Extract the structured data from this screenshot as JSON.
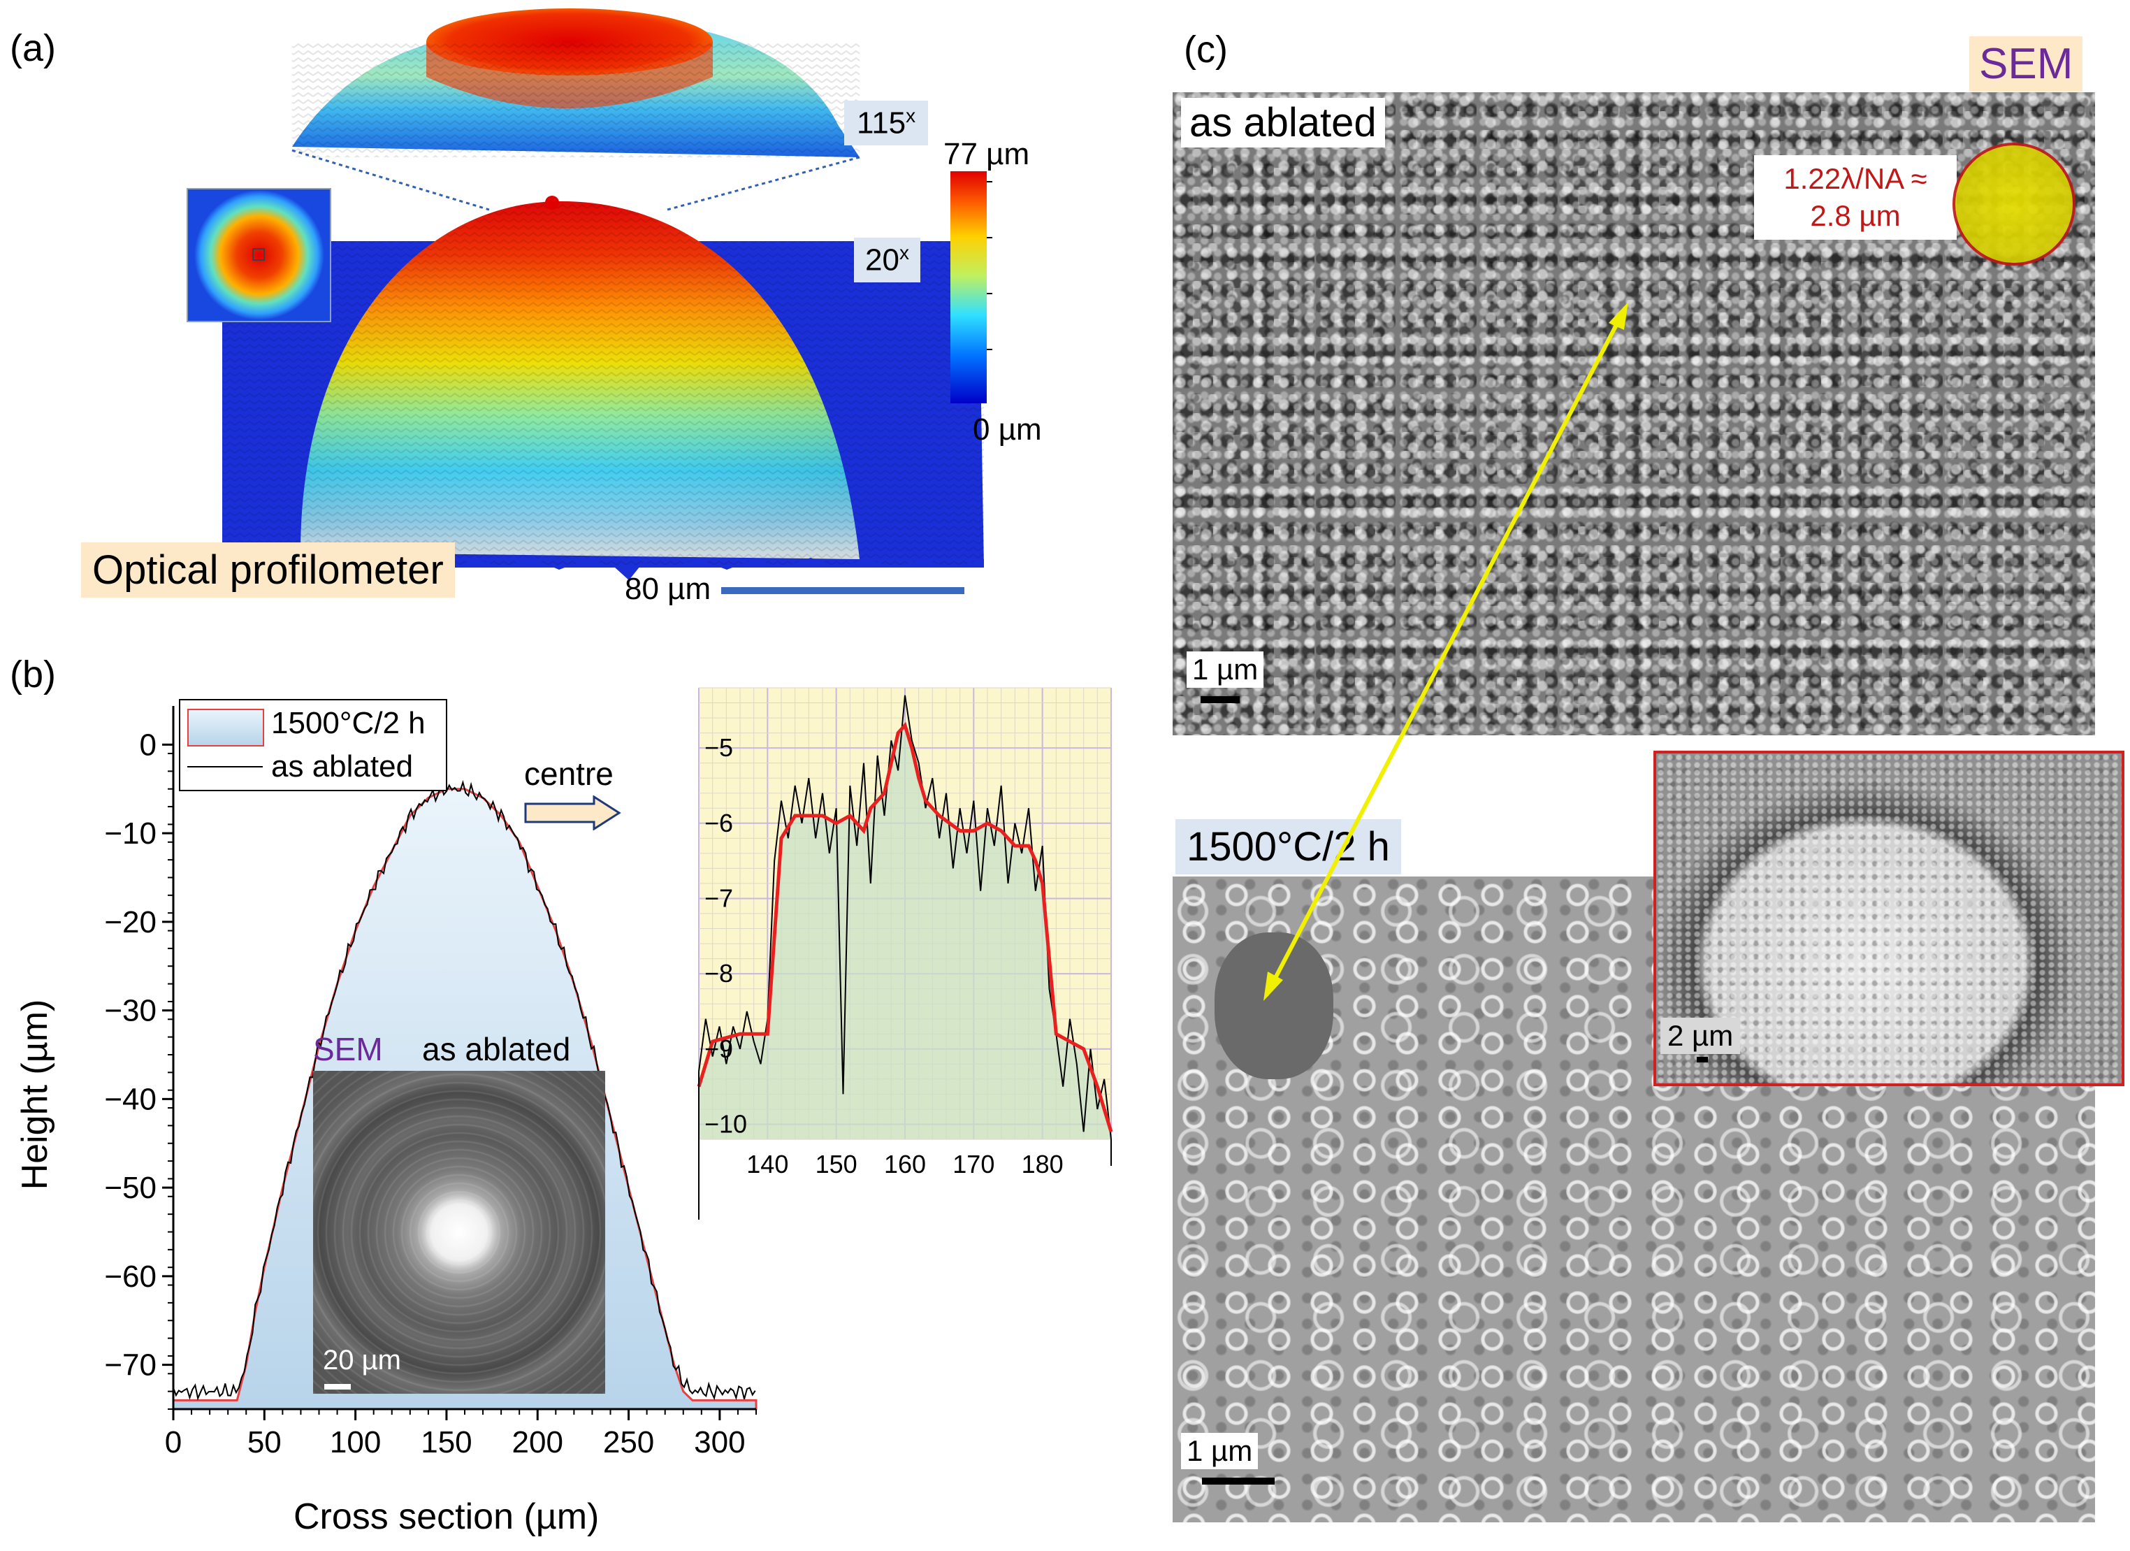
{
  "figure": {
    "panel_a": {
      "label": "(a)",
      "zoom_top": "115",
      "zoom_main": "20",
      "zoom_suffix": "x",
      "colorbar_max": "77 µm",
      "colorbar_min": "0 µm",
      "tag": "Optical profilometer",
      "scalebar": "80 µm",
      "colormap": [
        "#0000c8",
        "#00b4ff",
        "#40ffd0",
        "#e8f000",
        "#ff8000",
        "#e00000"
      ]
    },
    "panel_b": {
      "label": "(b)",
      "ylabel": "Height (µm)",
      "xlabel": "Cross section (µm)",
      "legend": [
        "1500°C/2 h",
        "as ablated"
      ],
      "arrow_label": "centre",
      "inset_sem": "SEM",
      "inset_title": "as ablated",
      "inset_scalebar": "20 µm"
    },
    "panel_c": {
      "label": "(c)",
      "sem_tag": "SEM",
      "top_tag": "as ablated",
      "annotation_line1": "1.22λ/NA ≈",
      "annotation_line2": "2.8 µm",
      "top_scalebar": "1 µm",
      "bottom_tag": "1500°C/2 h",
      "bottom_scalebar": "1 µm",
      "inset_scalebar": "2 µm"
    }
  },
  "chart_data": [
    {
      "type": "area",
      "xlim": [
        0,
        320
      ],
      "ylim": [
        -75,
        2
      ],
      "xticks": [
        0,
        50,
        100,
        150,
        200,
        250,
        300
      ],
      "yticks": [
        0,
        -10,
        -20,
        -30,
        -40,
        -50,
        -60,
        -70
      ],
      "xlabel": "Cross section (µm)",
      "ylabel": "Height (µm)",
      "legend": "top-left",
      "series": [
        {
          "name": "1500°C/2 h",
          "color": "#e84040",
          "x": [
            0,
            35,
            40,
            45,
            50,
            60,
            70,
            80,
            90,
            100,
            110,
            120,
            130,
            140,
            150,
            160,
            170,
            180,
            190,
            200,
            210,
            220,
            230,
            240,
            250,
            260,
            270,
            275,
            280,
            285,
            320
          ],
          "y": [
            -74,
            -74,
            -70,
            -64,
            -59,
            -50,
            -42,
            -34,
            -27,
            -21,
            -16,
            -12,
            -8,
            -6,
            -5,
            -5,
            -6,
            -8,
            -11,
            -16,
            -21,
            -27,
            -34,
            -42,
            -50,
            -58,
            -66,
            -70,
            -73,
            -74,
            -74
          ]
        },
        {
          "name": "as ablated",
          "color": "#000000",
          "x": [
            0,
            35,
            40,
            45,
            50,
            60,
            70,
            80,
            90,
            100,
            110,
            120,
            130,
            140,
            150,
            160,
            170,
            180,
            190,
            200,
            210,
            220,
            230,
            240,
            250,
            260,
            270,
            275,
            280,
            285,
            320
          ],
          "y": [
            -73,
            -73,
            -70,
            -64,
            -59,
            -50,
            -42,
            -34,
            -27,
            -21,
            -16,
            -12,
            -8,
            -6,
            -5,
            -5,
            -6,
            -8,
            -11,
            -16,
            -21,
            -27,
            -34,
            -42,
            -50,
            -58,
            -66,
            -70,
            -72,
            -73,
            -73
          ]
        }
      ]
    },
    {
      "type": "line",
      "xlim": [
        130,
        190
      ],
      "ylim": [
        -10.2,
        -4.2
      ],
      "xticks": [
        140,
        150,
        160,
        170,
        180
      ],
      "yticks": [
        -5,
        -6,
        -7,
        -8,
        -9,
        -10
      ],
      "series": [
        {
          "name": "1500°C/2 h",
          "color": "#e82020",
          "x": [
            130,
            132,
            136,
            140,
            141,
            142,
            144,
            148,
            150,
            152,
            154,
            155,
            157,
            158,
            159,
            160,
            161,
            162,
            163,
            165,
            168,
            170,
            172,
            174,
            176,
            178,
            179,
            180,
            181,
            182,
            184,
            186,
            188,
            190
          ],
          "y": [
            -9.5,
            -8.9,
            -8.8,
            -8.8,
            -7.5,
            -6.2,
            -5.9,
            -5.9,
            -6.0,
            -5.9,
            -6.1,
            -5.8,
            -5.6,
            -5.2,
            -4.8,
            -4.7,
            -5.0,
            -5.4,
            -5.7,
            -5.9,
            -6.1,
            -6.1,
            -6.0,
            -6.1,
            -6.3,
            -6.3,
            -6.5,
            -6.8,
            -7.8,
            -8.8,
            -8.9,
            -9.0,
            -9.5,
            -10.1
          ]
        },
        {
          "name": "as ablated",
          "color": "#000000",
          "x": [
            130,
            131,
            132,
            133,
            134,
            135,
            136,
            137,
            138,
            139,
            140,
            141,
            142,
            143,
            144,
            145,
            146,
            147,
            148,
            149,
            150,
            151,
            152,
            153,
            154,
            155,
            156,
            157,
            158,
            159,
            160,
            161,
            162,
            163,
            164,
            165,
            166,
            167,
            168,
            169,
            170,
            171,
            172,
            173,
            174,
            175,
            176,
            177,
            178,
            179,
            180,
            181,
            182,
            183,
            184,
            185,
            186,
            187,
            188,
            189,
            190
          ],
          "y": [
            -9.3,
            -8.6,
            -9.1,
            -8.7,
            -9.2,
            -8.7,
            -9.0,
            -8.5,
            -8.9,
            -9.2,
            -8.6,
            -6.5,
            -5.7,
            -6.2,
            -5.5,
            -6.0,
            -5.4,
            -6.2,
            -5.6,
            -6.4,
            -5.8,
            -9.6,
            -5.5,
            -6.3,
            -5.2,
            -6.8,
            -5.1,
            -5.9,
            -4.9,
            -5.3,
            -4.3,
            -4.9,
            -5.2,
            -5.8,
            -5.4,
            -6.2,
            -5.6,
            -6.6,
            -5.8,
            -6.4,
            -5.7,
            -6.9,
            -5.8,
            -6.3,
            -5.5,
            -6.8,
            -6.0,
            -6.4,
            -5.8,
            -6.9,
            -6.3,
            -8.2,
            -8.8,
            -9.5,
            -8.6,
            -9.2,
            -10.1,
            -9.0,
            -9.8,
            -9.4,
            -10.2
          ]
        }
      ]
    }
  ]
}
